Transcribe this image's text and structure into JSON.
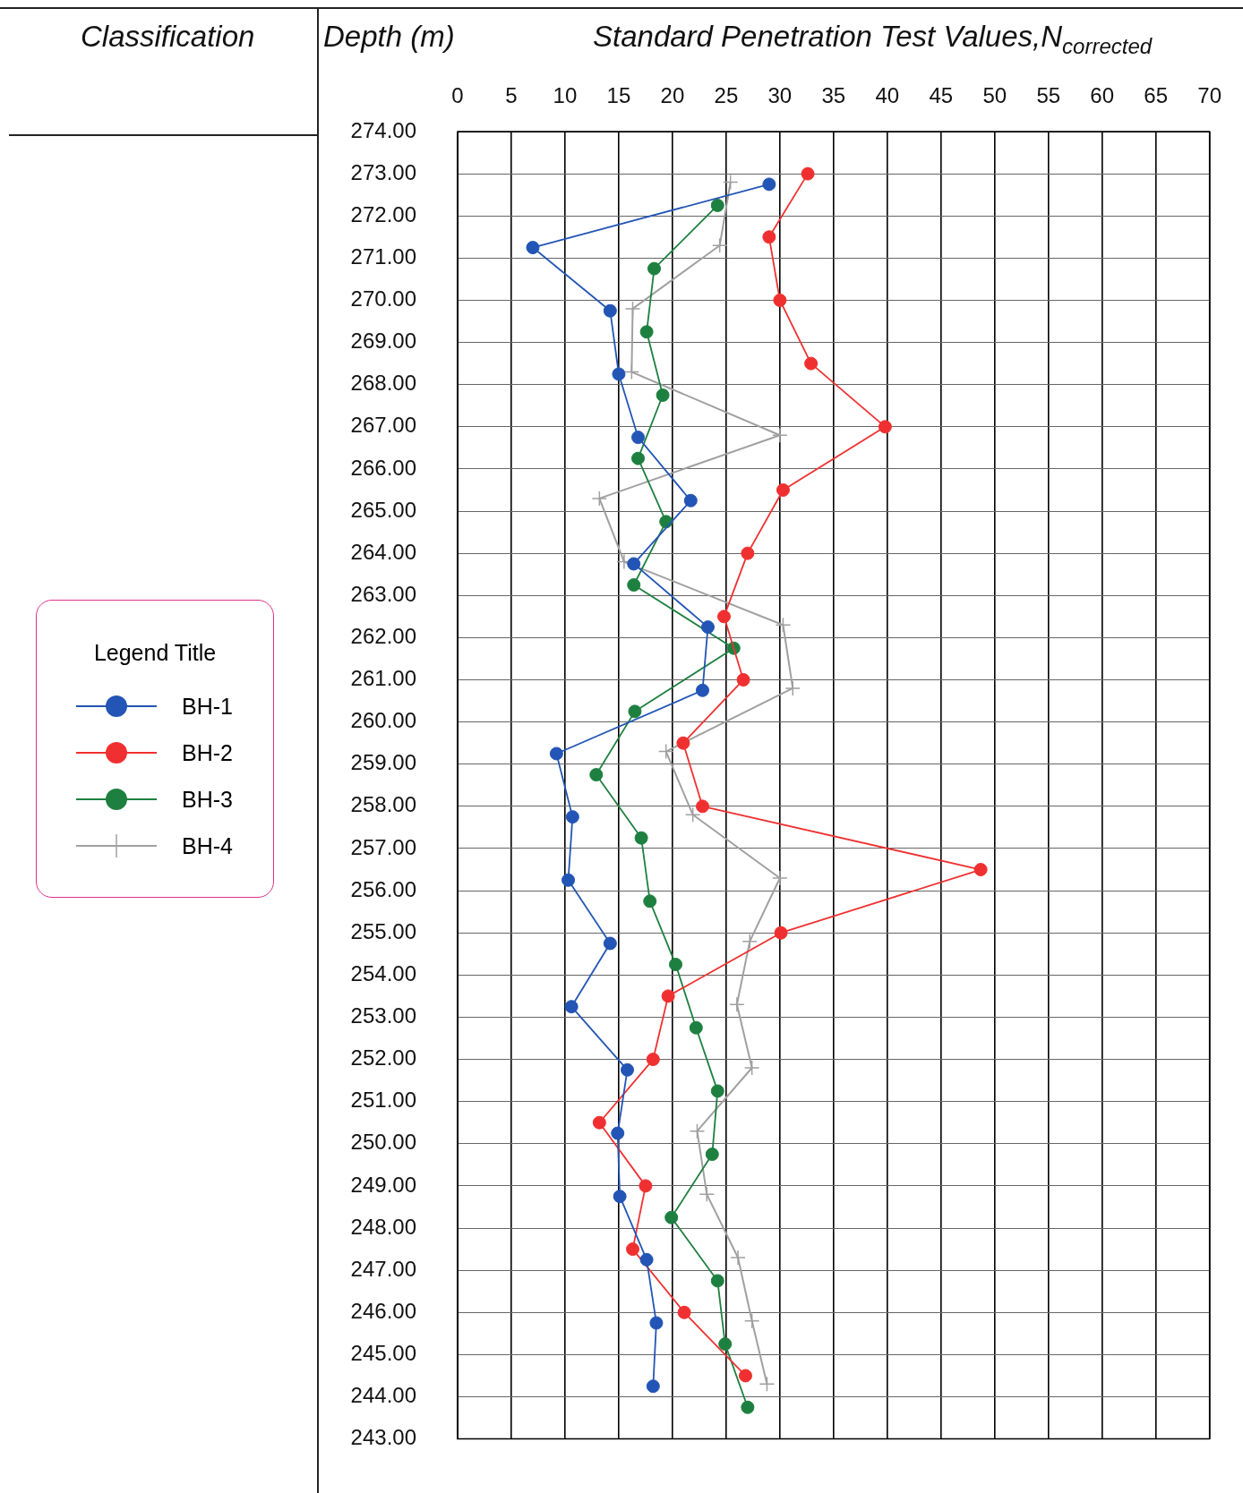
{
  "chart_data": {
    "type": "line",
    "title": "Standard Penetration Test Values,N$_{corrected}$",
    "ylabel": "Depth (m)",
    "legend_title": "Legend Title",
    "annotations": [
      "Classification"
    ],
    "xlim": [
      0,
      70
    ],
    "xticks": [
      0,
      5,
      10,
      15,
      20,
      25,
      30,
      35,
      40,
      45,
      50,
      55,
      60,
      65,
      70
    ],
    "ylim": [
      243,
      274
    ],
    "yticks": [
      {
        "value": 274,
        "label": "274.00"
      },
      {
        "value": 273,
        "label": "273.00"
      },
      {
        "value": 272,
        "label": "272.00"
      },
      {
        "value": 271,
        "label": "271.00"
      },
      {
        "value": 270,
        "label": "270.00"
      },
      {
        "value": 269,
        "label": "269.00"
      },
      {
        "value": 268,
        "label": "268.00"
      },
      {
        "value": 267,
        "label": "267.00"
      },
      {
        "value": 266,
        "label": "266.00"
      },
      {
        "value": 265,
        "label": "265.00"
      },
      {
        "value": 264,
        "label": "264.00"
      },
      {
        "value": 263,
        "label": "263.00"
      },
      {
        "value": 262,
        "label": "262.00"
      },
      {
        "value": 261,
        "label": "261.00"
      },
      {
        "value": 260,
        "label": "260.00"
      },
      {
        "value": 259,
        "label": "259.00"
      },
      {
        "value": 258,
        "label": "258.00"
      },
      {
        "value": 257,
        "label": "257.00"
      },
      {
        "value": 256,
        "label": "256.00"
      },
      {
        "value": 255,
        "label": "255.00"
      },
      {
        "value": 254,
        "label": "254.00"
      },
      {
        "value": 253,
        "label": "253.00"
      },
      {
        "value": 252,
        "label": "252.00"
      },
      {
        "value": 251,
        "label": "251.00"
      },
      {
        "value": 250,
        "label": "250.00"
      },
      {
        "value": 249,
        "label": "249.00"
      },
      {
        "value": 248,
        "label": "248.00"
      },
      {
        "value": 247,
        "label": "247.00"
      },
      {
        "value": 246,
        "label": "246.00"
      },
      {
        "value": 245,
        "label": "245.00"
      },
      {
        "value": 244,
        "label": "244.00"
      },
      {
        "value": 243,
        "label": "243.00"
      }
    ],
    "grid": true,
    "legend": "left",
    "line_style": "solid",
    "series": [
      {
        "name": "BH-1",
        "color": "#2255b5",
        "marker": "circle",
        "x": [
          29.0,
          7.0,
          14.2,
          15.0,
          16.8,
          21.7,
          16.4,
          23.3,
          22.8,
          9.2,
          10.7,
          10.3,
          14.2,
          10.6,
          15.8,
          14.9,
          15.1,
          17.6,
          18.5,
          18.2
        ],
        "values": [
          272.75,
          271.25,
          269.75,
          268.25,
          266.75,
          265.25,
          263.75,
          262.25,
          260.75,
          259.25,
          257.75,
          256.25,
          254.75,
          253.25,
          251.75,
          250.25,
          248.75,
          247.25,
          245.75,
          244.25
        ]
      },
      {
        "name": "BH-2",
        "color": "#f03030",
        "marker": "circle",
        "x": [
          32.6,
          29.0,
          30.0,
          32.9,
          39.8,
          30.3,
          27.0,
          24.8,
          26.6,
          21.0,
          22.8,
          48.7,
          30.1,
          19.6,
          18.2,
          13.2,
          17.5,
          16.3,
          21.1,
          26.8
        ],
        "values": [
          273.0,
          271.5,
          270.0,
          268.5,
          267.0,
          265.5,
          264.0,
          262.5,
          261.0,
          259.5,
          258.0,
          256.5,
          255.0,
          253.5,
          252.0,
          250.5,
          249.0,
          247.5,
          246.0,
          244.5
        ]
      },
      {
        "name": "BH-3",
        "color": "#1e8040",
        "marker": "circle",
        "x": [
          24.2,
          18.3,
          17.6,
          19.1,
          16.8,
          19.4,
          16.4,
          25.7,
          16.5,
          12.9,
          17.1,
          17.9,
          20.3,
          22.2,
          24.2,
          23.7,
          19.9,
          24.2,
          24.9,
          27.0
        ],
        "values": [
          272.25,
          270.75,
          269.25,
          267.75,
          266.25,
          264.75,
          263.25,
          261.75,
          260.25,
          258.75,
          257.25,
          255.75,
          254.25,
          252.75,
          251.25,
          249.75,
          248.25,
          246.75,
          245.25,
          243.75
        ]
      },
      {
        "name": "BH-4",
        "color": "#a0a0a0",
        "marker": "cross",
        "x": [
          25.4,
          24.4,
          16.3,
          16.2,
          30.0,
          13.2,
          15.5,
          30.3,
          31.2,
          19.4,
          21.9,
          30.0,
          27.2,
          26.0,
          27.4,
          22.3,
          23.2,
          26.1,
          27.4,
          28.8
        ],
        "values": [
          272.8,
          271.3,
          269.8,
          268.3,
          266.8,
          265.3,
          263.8,
          262.3,
          260.8,
          259.3,
          257.8,
          256.3,
          254.8,
          253.3,
          251.8,
          250.3,
          248.8,
          247.3,
          245.8,
          244.3
        ]
      }
    ]
  }
}
